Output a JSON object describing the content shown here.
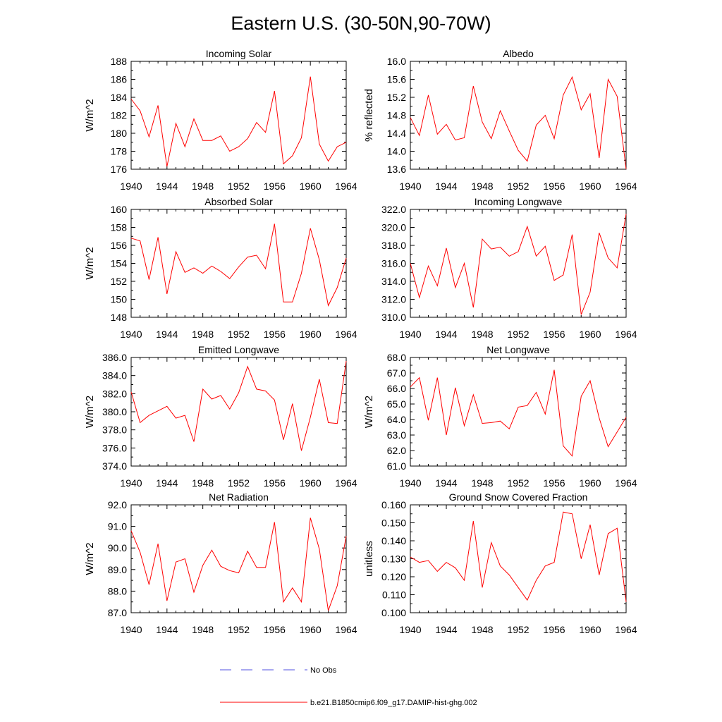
{
  "title": "Eastern U.S. (30-50N,90-70W)",
  "colors": {
    "model": "#ff0000",
    "obs": "#5050e0",
    "axis": "#000000"
  },
  "legend": {
    "obs_label": "No Obs",
    "model_label": "b.e21.B1850cmip6.f09_g17.DAMIP-hist-ghg.002"
  },
  "chart_data": [
    {
      "type": "line",
      "title": "Incoming Solar",
      "ylabel": "W/m^2",
      "xlim": [
        1940,
        1964
      ],
      "ylim": [
        176,
        188
      ],
      "xticks": [
        "1940",
        "1944",
        "1948",
        "1952",
        "1956",
        "1960",
        "1964"
      ],
      "yticks": [
        "176",
        "178",
        "180",
        "182",
        "184",
        "186",
        "188"
      ],
      "x": [
        1940,
        1941,
        1942,
        1943,
        1944,
        1945,
        1946,
        1947,
        1948,
        1949,
        1950,
        1951,
        1952,
        1953,
        1954,
        1955,
        1956,
        1957,
        1958,
        1959,
        1960,
        1961,
        1962,
        1963,
        1964
      ],
      "series": [
        {
          "values": [
            183.8,
            182.5,
            179.6,
            183.1,
            176.3,
            181.1,
            178.5,
            181.6,
            179.2,
            179.2,
            179.7,
            178.0,
            178.5,
            179.4,
            181.2,
            180.1,
            184.7,
            176.6,
            177.5,
            179.5,
            186.3,
            178.8,
            176.9,
            178.5,
            179.0
          ]
        }
      ]
    },
    {
      "type": "line",
      "title": "Albedo",
      "ylabel": "% reflected",
      "xlim": [
        1940,
        1964
      ],
      "ylim": [
        13.6,
        16.0
      ],
      "xticks": [
        "1940",
        "1944",
        "1948",
        "1952",
        "1956",
        "1960",
        "1964"
      ],
      "yticks": [
        "13.6",
        "14.0",
        "14.4",
        "14.8",
        "15.2",
        "15.6",
        "16.0"
      ],
      "x": [
        1940,
        1941,
        1942,
        1943,
        1944,
        1945,
        1946,
        1947,
        1948,
        1949,
        1950,
        1951,
        1952,
        1953,
        1954,
        1955,
        1956,
        1957,
        1958,
        1959,
        1960,
        1961,
        1962,
        1963,
        1964
      ],
      "series": [
        {
          "values": [
            14.75,
            14.35,
            15.25,
            14.38,
            14.6,
            14.25,
            14.3,
            15.45,
            14.65,
            14.28,
            14.9,
            14.45,
            14.02,
            13.78,
            14.58,
            14.8,
            14.28,
            15.25,
            15.65,
            14.92,
            15.28,
            13.85,
            15.6,
            15.22,
            13.6
          ]
        }
      ]
    },
    {
      "type": "line",
      "title": "Absorbed Solar",
      "ylabel": "W/m^2",
      "xlim": [
        1940,
        1964
      ],
      "ylim": [
        148,
        160
      ],
      "xticks": [
        "1940",
        "1944",
        "1948",
        "1952",
        "1956",
        "1960",
        "1964"
      ],
      "yticks": [
        "148",
        "150",
        "152",
        "154",
        "156",
        "158",
        "160"
      ],
      "x": [
        1940,
        1941,
        1942,
        1943,
        1944,
        1945,
        1946,
        1947,
        1948,
        1949,
        1950,
        1951,
        1952,
        1953,
        1954,
        1955,
        1956,
        1957,
        1958,
        1959,
        1960,
        1961,
        1962,
        1963,
        1964
      ],
      "series": [
        {
          "values": [
            156.8,
            156.5,
            152.2,
            156.9,
            150.6,
            155.3,
            153.0,
            153.5,
            152.9,
            153.7,
            153.1,
            152.3,
            153.6,
            154.7,
            154.9,
            153.4,
            158.4,
            149.7,
            149.7,
            152.9,
            157.9,
            154.4,
            149.3,
            151.3,
            154.6
          ]
        }
      ]
    },
    {
      "type": "line",
      "title": "Incoming Longwave",
      "ylabel": "",
      "xlim": [
        1940,
        1964
      ],
      "ylim": [
        310.0,
        322.0
      ],
      "xticks": [
        "1940",
        "1944",
        "1948",
        "1952",
        "1956",
        "1960",
        "1964"
      ],
      "yticks": [
        "310.0",
        "312.0",
        "314.0",
        "316.0",
        "318.0",
        "320.0",
        "322.0"
      ],
      "x": [
        1940,
        1941,
        1942,
        1943,
        1944,
        1945,
        1946,
        1947,
        1948,
        1949,
        1950,
        1951,
        1952,
        1953,
        1954,
        1955,
        1956,
        1957,
        1958,
        1959,
        1960,
        1961,
        1962,
        1963,
        1964
      ],
      "series": [
        {
          "values": [
            316.0,
            312.2,
            315.7,
            313.5,
            317.7,
            313.3,
            316.0,
            311.1,
            318.7,
            317.6,
            317.8,
            316.8,
            317.3,
            320.1,
            316.8,
            317.9,
            314.1,
            314.7,
            319.2,
            310.3,
            312.8,
            319.4,
            316.6,
            315.5,
            321.5
          ]
        }
      ]
    },
    {
      "type": "line",
      "title": "Emitted Longwave",
      "ylabel": "W/m^2",
      "xlim": [
        1940,
        1964
      ],
      "ylim": [
        374.0,
        386.0
      ],
      "xticks": [
        "1940",
        "1944",
        "1948",
        "1952",
        "1956",
        "1960",
        "1964"
      ],
      "yticks": [
        "374.0",
        "376.0",
        "378.0",
        "380.0",
        "382.0",
        "384.0",
        "386.0"
      ],
      "x": [
        1940,
        1941,
        1942,
        1943,
        1944,
        1945,
        1946,
        1947,
        1948,
        1949,
        1950,
        1951,
        1952,
        1953,
        1954,
        1955,
        1956,
        1957,
        1958,
        1959,
        1960,
        1961,
        1962,
        1963,
        1964
      ],
      "series": [
        {
          "values": [
            382.2,
            378.8,
            379.6,
            380.1,
            380.6,
            379.3,
            379.6,
            376.7,
            382.5,
            381.4,
            381.8,
            380.3,
            382.1,
            385.0,
            382.5,
            382.3,
            381.3,
            376.9,
            380.9,
            375.7,
            379.4,
            383.6,
            378.8,
            378.7,
            385.6
          ]
        }
      ]
    },
    {
      "type": "line",
      "title": "Net Longwave",
      "ylabel": "W/m^2",
      "xlim": [
        1940,
        1964
      ],
      "ylim": [
        61.0,
        68.0
      ],
      "xticks": [
        "1940",
        "1944",
        "1948",
        "1952",
        "1956",
        "1960",
        "1964"
      ],
      "yticks": [
        "61.0",
        "62.0",
        "63.0",
        "64.0",
        "65.0",
        "66.0",
        "67.0",
        "68.0"
      ],
      "x": [
        1940,
        1941,
        1942,
        1943,
        1944,
        1945,
        1946,
        1947,
        1948,
        1949,
        1950,
        1951,
        1952,
        1953,
        1954,
        1955,
        1956,
        1957,
        1958,
        1959,
        1960,
        1961,
        1962,
        1963,
        1964
      ],
      "series": [
        {
          "values": [
            66.1,
            66.7,
            63.95,
            66.7,
            63.0,
            66.05,
            63.6,
            65.6,
            63.75,
            63.8,
            63.9,
            63.4,
            64.8,
            64.9,
            65.75,
            64.35,
            67.2,
            62.3,
            61.65,
            65.5,
            66.5,
            64.1,
            62.25,
            63.2,
            64.15
          ]
        }
      ]
    },
    {
      "type": "line",
      "title": "Net Radiation",
      "ylabel": "W/m^2",
      "xlim": [
        1940,
        1964
      ],
      "ylim": [
        87.0,
        92.0
      ],
      "xticks": [
        "1940",
        "1944",
        "1948",
        "1952",
        "1956",
        "1960",
        "1964"
      ],
      "yticks": [
        "87.0",
        "88.0",
        "89.0",
        "90.0",
        "91.0",
        "92.0"
      ],
      "x": [
        1940,
        1941,
        1942,
        1943,
        1944,
        1945,
        1946,
        1947,
        1948,
        1949,
        1950,
        1951,
        1952,
        1953,
        1954,
        1955,
        1956,
        1957,
        1958,
        1959,
        1960,
        1961,
        1962,
        1963,
        1964
      ],
      "series": [
        {
          "values": [
            90.8,
            89.8,
            88.3,
            90.2,
            87.55,
            89.35,
            89.5,
            87.95,
            89.2,
            89.9,
            89.15,
            88.95,
            88.85,
            89.85,
            89.1,
            89.1,
            91.2,
            87.5,
            88.15,
            87.5,
            91.4,
            89.95,
            87.1,
            88.25,
            90.55
          ]
        }
      ]
    },
    {
      "type": "line",
      "title": "Ground Snow Covered Fraction",
      "ylabel": "unitless",
      "xlim": [
        1940,
        1964
      ],
      "ylim": [
        0.1,
        0.16
      ],
      "xticks": [
        "1940",
        "1944",
        "1948",
        "1952",
        "1956",
        "1960",
        "1964"
      ],
      "yticks": [
        "0.100",
        "0.110",
        "0.120",
        "0.130",
        "0.140",
        "0.150",
        "0.160"
      ],
      "x": [
        1940,
        1941,
        1942,
        1943,
        1944,
        1945,
        1946,
        1947,
        1948,
        1949,
        1950,
        1951,
        1952,
        1953,
        1954,
        1955,
        1956,
        1957,
        1958,
        1959,
        1960,
        1961,
        1962,
        1963,
        1964
      ],
      "series": [
        {
          "values": [
            0.131,
            0.128,
            0.129,
            0.123,
            0.128,
            0.125,
            0.118,
            0.151,
            0.114,
            0.139,
            0.126,
            0.121,
            0.114,
            0.107,
            0.118,
            0.126,
            0.128,
            0.156,
            0.155,
            0.13,
            0.149,
            0.121,
            0.144,
            0.147,
            0.106
          ]
        }
      ]
    }
  ]
}
